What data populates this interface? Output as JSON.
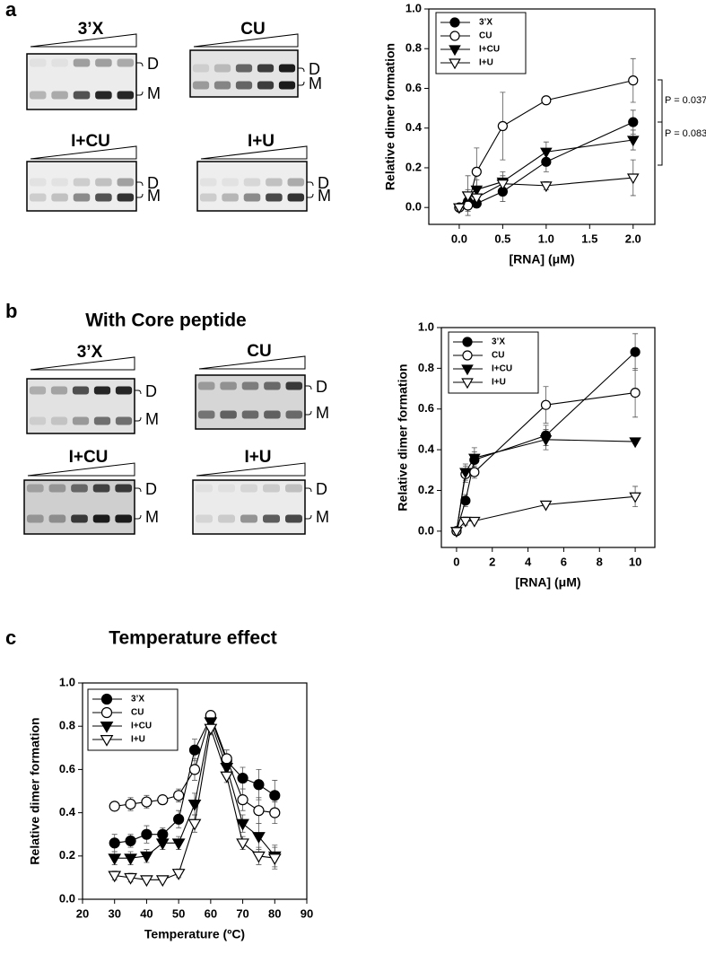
{
  "panel_labels": [
    "a",
    "b",
    "c"
  ],
  "gel_heading": "With Core peptide",
  "gels": [
    {
      "title": "3’X",
      "bands": [
        "D",
        "M"
      ]
    },
    {
      "title": "CU",
      "bands": [
        "D",
        "M"
      ]
    },
    {
      "title": "I+CU",
      "bands": [
        "D",
        "M"
      ]
    },
    {
      "title": "I+U",
      "bands": [
        "D",
        "M"
      ]
    },
    {
      "title": "3’X",
      "bands": [
        "D",
        "M"
      ]
    },
    {
      "title": "CU",
      "bands": [
        "D",
        "M"
      ]
    },
    {
      "title": "I+CU",
      "bands": [
        "D",
        "M"
      ]
    },
    {
      "title": "I+U",
      "bands": [
        "D",
        "M"
      ]
    }
  ],
  "chart_data": [
    {
      "type": "line",
      "x_label": "[RNA] (μM)",
      "y_label": "Relative dimer formation",
      "x": [
        0,
        0.1,
        0.2,
        0.5,
        1.0,
        2.0
      ],
      "xlim": [
        -0.35,
        2.25
      ],
      "xticks": [
        {
          "value": 0,
          "label": "0.0"
        },
        0.5,
        {
          "value": 1,
          "label": "1.0"
        },
        1.5,
        {
          "value": 2,
          "label": "2.0"
        }
      ],
      "ylim": [
        -0.085,
        1.0
      ],
      "yticks": [
        {
          "value": 0,
          "label": "0.0"
        },
        0.2,
        0.4,
        0.6,
        0.8,
        {
          "value": 1,
          "label": "1.0"
        }
      ],
      "legend": "upper left",
      "grid": false,
      "annotations": [
        "P = 0.037",
        "P = 0.083"
      ],
      "series": [
        {
          "name": "3’X",
          "color": "#000000",
          "marker": "circle",
          "filled": true,
          "values": [
            0,
            0.03,
            0.02,
            0.08,
            0.23,
            0.43
          ],
          "errors": [
            0.01,
            0.02,
            0.02,
            0.05,
            0.05,
            0.06
          ]
        },
        {
          "name": "CU",
          "color": "#000000",
          "marker": "circle",
          "filled": false,
          "values": [
            0,
            0.01,
            0.18,
            0.41,
            0.54,
            0.64
          ],
          "errors": [
            0.01,
            0.03,
            0.12,
            0.17,
            0.01,
            0.11
          ]
        },
        {
          "name": "I+CU",
          "color": "#000000",
          "marker": "triangle-down",
          "filled": true,
          "values": [
            0,
            0.06,
            0.09,
            0.13,
            0.28,
            0.34
          ],
          "errors": [
            0.01,
            0.03,
            0.05,
            0.05,
            0.05,
            0.05
          ]
        },
        {
          "name": "I+U",
          "color": "#000000",
          "marker": "triangle-down",
          "filled": false,
          "values": [
            0,
            0.06,
            0.05,
            0.12,
            0.11,
            0.15
          ],
          "errors": [
            0.01,
            0.1,
            0.05,
            0.04,
            0.02,
            0.09
          ]
        }
      ]
    },
    {
      "type": "line",
      "x_label": "[RNA] (μM)",
      "y_label": "Relative dimer formation",
      "x": [
        0,
        0.5,
        1,
        5,
        10
      ],
      "xlim": [
        -0.85,
        11.1
      ],
      "xticks": [
        0,
        2,
        4,
        6,
        8,
        10
      ],
      "ylim": [
        -0.08,
        1.0
      ],
      "yticks": [
        {
          "value": 0,
          "label": "0.0"
        },
        0.2,
        0.4,
        0.6,
        0.8,
        {
          "value": 1,
          "label": "1.0"
        }
      ],
      "legend": "upper left",
      "grid": false,
      "series": [
        {
          "name": "3’X",
          "color": "#000000",
          "marker": "circle",
          "filled": true,
          "values": [
            0,
            0.15,
            0.35,
            0.47,
            0.88
          ],
          "errors": [
            0.01,
            0.03,
            0.04,
            0.05,
            0.09
          ]
        },
        {
          "name": "CU",
          "color": "#000000",
          "marker": "circle",
          "filled": false,
          "values": [
            0,
            0.28,
            0.29,
            0.62,
            0.68
          ],
          "errors": [
            0.01,
            0.04,
            0.03,
            0.09,
            0.12
          ]
        },
        {
          "name": "I+CU",
          "color": "#000000",
          "marker": "triangle-down",
          "filled": true,
          "values": [
            0,
            0.29,
            0.36,
            0.45,
            0.44
          ],
          "errors": [
            0.01,
            0.04,
            0.05,
            0.05,
            0.01
          ]
        },
        {
          "name": "I+U",
          "color": "#000000",
          "marker": "triangle-down",
          "filled": false,
          "values": [
            0,
            0.05,
            0.05,
            0.13,
            0.17
          ],
          "errors": [
            0.01,
            0.02,
            0.01,
            0.01,
            0.05
          ]
        }
      ]
    },
    {
      "type": "line",
      "title": "Temperature effect",
      "x_label": "Temperature (ºC)",
      "y_label": "Relative dimer formation",
      "x": [
        30,
        35,
        40,
        45,
        50,
        55,
        60,
        65,
        70,
        75,
        80
      ],
      "xlim": [
        20,
        90
      ],
      "xticks": [
        20,
        30,
        40,
        50,
        60,
        70,
        80,
        90
      ],
      "ylim": [
        0,
        1.0
      ],
      "yticks": [
        {
          "value": 0,
          "label": "0.0"
        },
        0.2,
        0.4,
        0.6,
        0.8,
        {
          "value": 1,
          "label": "1.0"
        }
      ],
      "legend": "upper left",
      "grid": false,
      "series": [
        {
          "name": "3’X",
          "color": "#000000",
          "marker": "circle",
          "filled": true,
          "values": [
            0.26,
            0.27,
            0.3,
            0.3,
            0.37,
            0.69,
            0.84,
            0.64,
            0.56,
            0.53,
            0.48
          ],
          "errors": [
            0.04,
            0.03,
            0.04,
            0.03,
            0.04,
            0.05,
            0.02,
            0.03,
            0.05,
            0.07,
            0.07
          ]
        },
        {
          "name": "CU",
          "color": "#000000",
          "marker": "circle",
          "filled": false,
          "values": [
            0.43,
            0.44,
            0.45,
            0.46,
            0.48,
            0.6,
            0.85,
            0.65,
            0.46,
            0.41,
            0.4
          ],
          "errors": [
            0.02,
            0.03,
            0.03,
            0.02,
            0.03,
            0.05,
            0.02,
            0.04,
            0.05,
            0.06,
            0.05
          ]
        },
        {
          "name": "I+CU",
          "color": "#000000",
          "marker": "triangle-down",
          "filled": true,
          "values": [
            0.19,
            0.19,
            0.2,
            0.26,
            0.26,
            0.44,
            0.82,
            0.61,
            0.35,
            0.29,
            0.2
          ],
          "errors": [
            0.03,
            0.03,
            0.03,
            0.03,
            0.03,
            0.05,
            0.03,
            0.04,
            0.04,
            0.06,
            0.05
          ]
        },
        {
          "name": "I+U",
          "color": "#000000",
          "marker": "triangle-down",
          "filled": false,
          "values": [
            0.11,
            0.1,
            0.09,
            0.09,
            0.12,
            0.35,
            0.79,
            0.57,
            0.26,
            0.2,
            0.19
          ],
          "errors": [
            0.02,
            0.02,
            0.01,
            0.01,
            0.02,
            0.04,
            0.03,
            0.03,
            0.03,
            0.04,
            0.05
          ]
        }
      ]
    }
  ]
}
